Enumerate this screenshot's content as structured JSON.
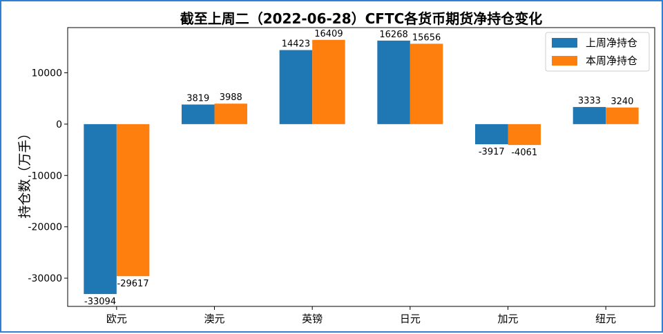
{
  "chart_data": {
    "type": "bar",
    "title": "截至上周二（2022-06-28）CFTC各货币期货净持仓变化",
    "xlabel": "",
    "ylabel": "持仓数（万手）",
    "categories": [
      "欧元",
      "澳元",
      "英镑",
      "日元",
      "加元",
      "纽元"
    ],
    "series": [
      {
        "name": "上周净持仓",
        "color": "#1f77b4",
        "values": [
          -33094,
          3819,
          14423,
          16268,
          -3917,
          3333
        ]
      },
      {
        "name": "本周净持仓",
        "color": "#ff7f0e",
        "values": [
          -29617,
          3988,
          16409,
          15656,
          -4061,
          3240
        ]
      }
    ],
    "ylim": [
      -35500,
      18800
    ],
    "yticks": [
      -30000,
      -20000,
      -10000,
      0,
      10000
    ],
    "grid": false,
    "legend_position": "top-right",
    "data_labels": true
  }
}
